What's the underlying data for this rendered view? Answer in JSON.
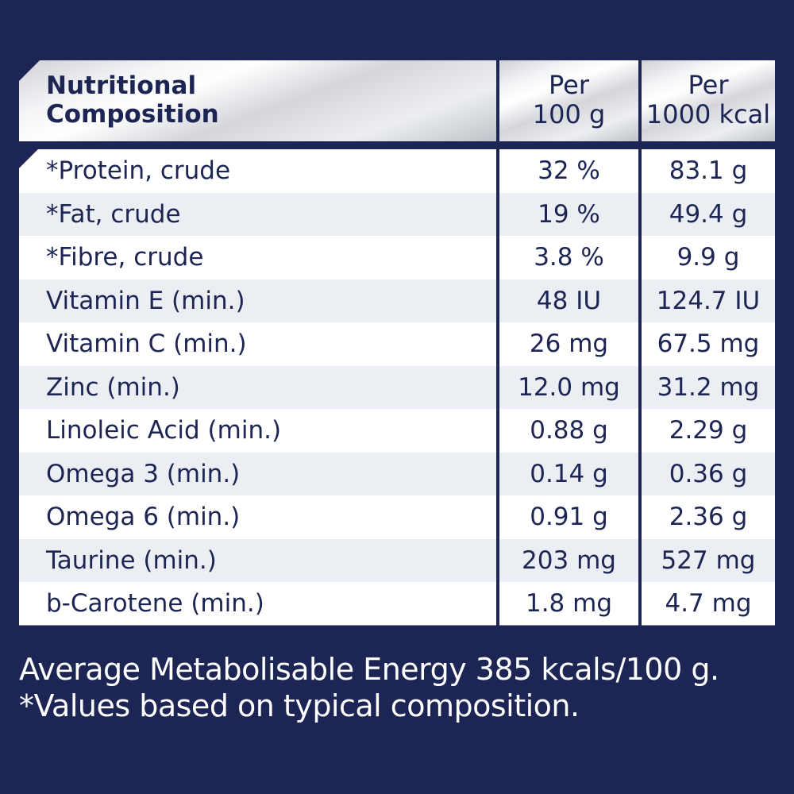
{
  "table": {
    "header": {
      "name_line1": "Nutritional",
      "name_line2": "Composition",
      "col_a_line1": "Per",
      "col_a_line2": "100 g",
      "col_b_line1": "Per",
      "col_b_line2": "1000 kcal"
    },
    "rows": [
      {
        "name": "*Protein, crude",
        "per_100g": "32 %",
        "per_1000kcal": "83.1 g"
      },
      {
        "name": "*Fat, crude",
        "per_100g": "19 %",
        "per_1000kcal": "49.4 g"
      },
      {
        "name": "*Fibre, crude",
        "per_100g": "3.8 %",
        "per_1000kcal": "9.9 g"
      },
      {
        "name": "Vitamin E (min.)",
        "per_100g": "48 IU",
        "per_1000kcal": "124.7 IU"
      },
      {
        "name": "Vitamin C (min.)",
        "per_100g": "26 mg",
        "per_1000kcal": "67.5 mg"
      },
      {
        "name": "Zinc (min.)",
        "per_100g": "12.0 mg",
        "per_1000kcal": "31.2 mg"
      },
      {
        "name": "Linoleic Acid (min.)",
        "per_100g": "0.88 g",
        "per_1000kcal": "2.29 g"
      },
      {
        "name": "Omega 3 (min.)",
        "per_100g": "0.14 g",
        "per_1000kcal": "0.36 g"
      },
      {
        "name": "Omega 6 (min.)",
        "per_100g": "0.91 g",
        "per_1000kcal": "2.36 g"
      },
      {
        "name": "Taurine (min.)",
        "per_100g": "203 mg",
        "per_1000kcal": "527 mg"
      },
      {
        "name": "b-Carotene (min.)",
        "per_100g": "1.8 mg",
        "per_1000kcal": "4.7 mg"
      }
    ]
  },
  "footer": {
    "energy_note": "Average Metabolisable Energy 385 kcals/100 g.",
    "values_note": "*Values based on typical composition."
  },
  "colors": {
    "background": "#1c2554",
    "row_alt": "#ebeef3",
    "text": "#1c2554"
  }
}
